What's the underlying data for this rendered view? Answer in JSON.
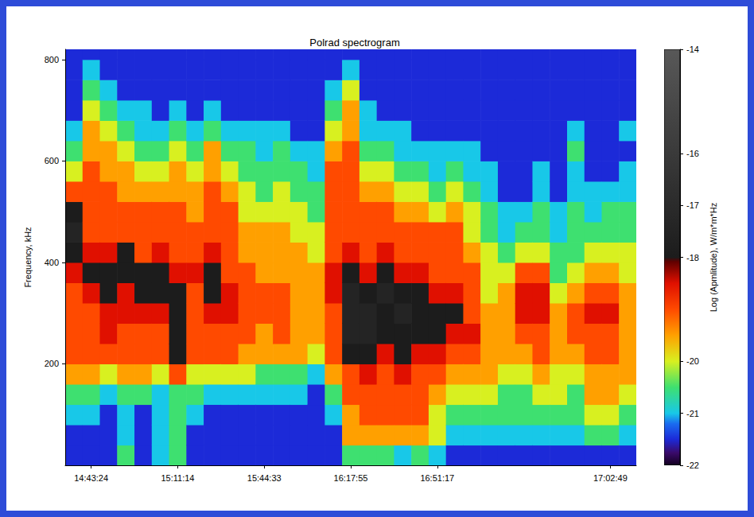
{
  "chart_data": {
    "type": "heatmap",
    "title": "Polrad spectrogram",
    "y_label": "Frequency, kHz",
    "categories": [
      null,
      "14:43:24",
      null,
      null,
      null,
      null,
      "15:11:14",
      null,
      null,
      null,
      null,
      "15:44:33",
      null,
      null,
      null,
      null,
      "16:17:55",
      null,
      null,
      null,
      null,
      "16:51:17",
      null,
      null,
      null,
      null,
      null,
      null,
      null,
      null,
      null,
      "17:02:49",
      null
    ],
    "frequency_bins": [
      0,
      40,
      80,
      120,
      160,
      200,
      240,
      280,
      320,
      360,
      400,
      440,
      480,
      520,
      560,
      600,
      640,
      680,
      720,
      760,
      800,
      820
    ],
    "ylim": [
      0,
      820
    ],
    "yticks": [
      200,
      400,
      600,
      800
    ],
    "amplitude": [
      [
        -21.5,
        -21.5,
        -21,
        -20.5,
        -19.5,
        -19,
        -19,
        -19,
        -19,
        -18.5,
        -18,
        -17.5,
        -18,
        -19,
        -20,
        -20.5,
        -21,
        -21.5,
        -21.5,
        -21.5,
        -21.5
      ],
      [
        -21.5,
        -21.5,
        -21,
        -20.5,
        -19.5,
        -19,
        -19,
        -19,
        -18.5,
        -18,
        -18.5,
        -19,
        -19,
        -19,
        -19,
        -19.5,
        -19.5,
        -20,
        -20.5,
        -21,
        -21.5
      ],
      [
        -21.5,
        -21.5,
        -21.5,
        -21,
        -20,
        -19,
        -18.5,
        -18.5,
        -18,
        -18,
        -18.5,
        -19,
        -19,
        -19,
        -19.5,
        -19.5,
        -20,
        -20.5,
        -21,
        -21.5,
        -21.5
      ],
      [
        -20.5,
        -21,
        -21,
        -20.5,
        -19.5,
        -19,
        -19,
        -18.5,
        -18.5,
        -18,
        -18,
        -19,
        -19,
        -19.5,
        -19.5,
        -20,
        -20.5,
        -21,
        -21.5,
        -21.5,
        -21.5
      ],
      [
        -21.5,
        -21.5,
        -21.5,
        -20.5,
        -19.5,
        -19,
        -19,
        -18.5,
        -18,
        -18,
        -19,
        -19,
        -19,
        -19.5,
        -20,
        -20.5,
        -21,
        -21,
        -21.5,
        -21.5,
        -21.5
      ],
      [
        -21,
        -21,
        -21,
        -21,
        -20,
        -19,
        -19,
        -18.5,
        -18,
        -18,
        -18.5,
        -19,
        -19,
        -19.5,
        -20,
        -20.5,
        -21,
        -21.5,
        -21.5,
        -21.5,
        -21.5
      ],
      [
        -20.5,
        -20.5,
        -20.5,
        -20.5,
        -19,
        -18,
        -18,
        -18,
        -18,
        -18.5,
        -19,
        -19,
        -19,
        -19.5,
        -19.5,
        -20,
        -20.5,
        -21,
        -21.5,
        -21.5,
        -21.5
      ],
      [
        -21.5,
        -21.5,
        -21,
        -20.5,
        -20,
        -19,
        -19,
        -19,
        -19,
        -18.5,
        -19,
        -19,
        -19.5,
        -19.5,
        -20,
        -20.5,
        -21,
        -21.5,
        -21.5,
        -21.5,
        -21.5
      ],
      [
        -21.5,
        -21.5,
        -21.5,
        -21,
        -20,
        -19,
        -19,
        -18.5,
        -18,
        -18,
        -18.5,
        -19,
        -19,
        -19,
        -19.5,
        -19.5,
        -20.5,
        -21,
        -21.5,
        -21.5,
        -21.5
      ],
      [
        -21.5,
        -21.5,
        -21.5,
        -21,
        -20,
        -19,
        -19,
        -18.5,
        -18.5,
        -19,
        -19,
        -19,
        -19,
        -19.5,
        -20,
        -20.5,
        -21,
        -21.5,
        -21.5,
        -21.5,
        -21.5
      ],
      [
        -21.5,
        -21.5,
        -21.5,
        -21,
        -20,
        -19.5,
        -19,
        -19,
        -19,
        -19,
        -19.5,
        -19.5,
        -20,
        -20,
        -20.5,
        -20.5,
        -21,
        -21.5,
        -21.5,
        -21.5,
        -21.5
      ],
      [
        -21.5,
        -21.5,
        -21.5,
        -21,
        -20.5,
        -19.5,
        -19.5,
        -19,
        -19,
        -19.5,
        -19.5,
        -19.5,
        -20,
        -20.5,
        -20.5,
        -21,
        -21,
        -21.5,
        -21.5,
        -21.5,
        -21.5
      ],
      [
        -21.5,
        -21.5,
        -21.5,
        -21,
        -20.5,
        -19.5,
        -19,
        -19,
        -19,
        -19.5,
        -19.5,
        -19.5,
        -20,
        -20,
        -20.5,
        -20.5,
        -21,
        -21.5,
        -21.5,
        -21.5,
        -21.5
      ],
      [
        -21.5,
        -21.5,
        -21.5,
        -21,
        -20.5,
        -19.5,
        -19.5,
        -19.5,
        -19.5,
        -19.5,
        -19.5,
        -20,
        -20,
        -20.5,
        -20.5,
        -21,
        -21.5,
        -21.5,
        -21.5,
        -21.5,
        -21.5
      ],
      [
        -21.5,
        -21.5,
        -21.5,
        -21.5,
        -21,
        -20,
        -19.5,
        -19.5,
        -19.5,
        -19.5,
        -20,
        -20,
        -20.5,
        -20.5,
        -21,
        -21,
        -21.5,
        -21.5,
        -21.5,
        -21.5,
        -21.5
      ],
      [
        -21.5,
        -21.5,
        -21,
        -20.5,
        -19.5,
        -19,
        -19,
        -19,
        -18.5,
        -18.5,
        -19,
        -19,
        -19,
        -19,
        -19,
        -19.5,
        -20,
        -20.5,
        -21,
        -21.5,
        -21.5
      ],
      [
        -20.5,
        -19.5,
        -19.5,
        -19,
        -19,
        -18,
        -17.5,
        -17.5,
        -17.5,
        -18,
        -18.5,
        -19,
        -19,
        -19,
        -19,
        -19,
        -19.5,
        -19.5,
        -20,
        -21,
        -21.5
      ],
      [
        -20.5,
        -19.5,
        -19,
        -19,
        -18.5,
        -18,
        -17.5,
        -17.5,
        -18,
        -18.5,
        -19,
        -19,
        -19,
        -19.5,
        -20,
        -20.5,
        -21,
        -21,
        -21.5,
        -21.5,
        -21.5
      ],
      [
        -20.5,
        -19.5,
        -19,
        -19,
        -19,
        -18.5,
        -18,
        -18,
        -17.5,
        -18,
        -18.5,
        -19,
        -19,
        -19.5,
        -20,
        -20.5,
        -21,
        -21.5,
        -21.5,
        -21.5,
        -21.5
      ],
      [
        -21,
        -19.5,
        -19,
        -19,
        -18.5,
        -18,
        -18,
        -17.5,
        -18,
        -18.5,
        -19,
        -19,
        -19.5,
        -20,
        -20.5,
        -21,
        -21,
        -21.5,
        -21.5,
        -21.5,
        -21.5
      ],
      [
        -20.5,
        -19.5,
        -19,
        -19,
        -19,
        -18.5,
        -18,
        -18,
        -18,
        -18.5,
        -19,
        -19,
        -19.5,
        -20,
        -20.5,
        -21,
        -21.5,
        -21.5,
        -21.5,
        -21.5,
        -21.5
      ],
      [
        -21,
        -20,
        -20,
        -19.5,
        -19,
        -18.5,
        -18,
        -18,
        -18.5,
        -19,
        -19,
        -19,
        -20,
        -20.5,
        -21,
        -21,
        -21.5,
        -21.5,
        -21.5,
        -21.5,
        -21.5
      ],
      [
        -21.5,
        -21,
        -20.5,
        -20,
        -19.5,
        -19,
        -18.5,
        -18,
        -18.5,
        -19,
        -19,
        -19,
        -19.5,
        -20,
        -20.5,
        -21,
        -21.5,
        -21.5,
        -21.5,
        -21.5,
        -21.5
      ],
      [
        -21.5,
        -21,
        -20.5,
        -20,
        -19.5,
        -19,
        -18.5,
        -19,
        -19,
        -19,
        -19.5,
        -20,
        -20,
        -20.5,
        -21,
        -21,
        -21.5,
        -21.5,
        -21.5,
        -21.5,
        -21.5
      ],
      [
        -21.5,
        -21,
        -20.5,
        -20,
        -19.5,
        -19.5,
        -19.5,
        -19.5,
        -20,
        -20,
        -20,
        -20.5,
        -20.5,
        -21,
        -21,
        -21.5,
        -21.5,
        -21.5,
        -21.5,
        -21.5,
        -21.5
      ],
      [
        -21.5,
        -21,
        -20.5,
        -20.5,
        -20,
        -19.5,
        -19.5,
        -19.5,
        -19.5,
        -20,
        -20.5,
        -21,
        -21,
        -21.5,
        -21.5,
        -21.5,
        -21.5,
        -21.5,
        -21.5,
        -21.5,
        -21.5
      ],
      [
        -21.5,
        -21,
        -20.5,
        -20.5,
        -20,
        -19.5,
        -19,
        -18.5,
        -18.5,
        -19,
        -20,
        -20.5,
        -21,
        -21.5,
        -21.5,
        -21.5,
        -21.5,
        -21.5,
        -21.5,
        -21.5,
        -21.5
      ],
      [
        -21.5,
        -21,
        -20.5,
        -20,
        -19.5,
        -19,
        -19,
        -18.5,
        -18.5,
        -19,
        -20,
        -20.5,
        -20.5,
        -21,
        -21,
        -21.5,
        -21.5,
        -21.5,
        -21.5,
        -21.5,
        -21.5
      ],
      [
        -21.5,
        -21,
        -20.5,
        -20,
        -20,
        -19.5,
        -19.5,
        -19.5,
        -20,
        -20.5,
        -20.5,
        -21,
        -21,
        -21.5,
        -21.5,
        -21.5,
        -21.5,
        -21.5,
        -21.5,
        -21.5,
        -21.5
      ],
      [
        -21.5,
        -21,
        -20.5,
        -20.5,
        -20,
        -19.5,
        -19,
        -19,
        -19.5,
        -20,
        -20.5,
        -20.5,
        -20.5,
        -21,
        -21,
        -20.5,
        -21,
        -21.5,
        -21.5,
        -21.5,
        -21.5
      ],
      [
        -21.5,
        -20.5,
        -20,
        -19.5,
        -19.5,
        -19,
        -19,
        -18.5,
        -19,
        -19.5,
        -20,
        -20.5,
        -21,
        -21,
        -21.5,
        -21.5,
        -21.5,
        -21.5,
        -21.5,
        -21.5,
        -21.5
      ],
      [
        -21.5,
        -20.5,
        -20,
        -19.5,
        -19.5,
        -19,
        -19,
        -18.5,
        -19,
        -19.5,
        -20,
        -20.5,
        -20.5,
        -21,
        -21.5,
        -21.5,
        -21.5,
        -21.5,
        -21.5,
        -21.5,
        -21.5
      ],
      [
        -21.5,
        -21,
        -20.5,
        -20,
        -19.5,
        -19.5,
        -19.5,
        -19.5,
        -19.5,
        -20,
        -20,
        -20.5,
        -20.5,
        -21,
        -21,
        -21.5,
        -21,
        -21.5,
        -21.5,
        -21.5,
        -21.5
      ]
    ],
    "colorbar": {
      "label": "Log (Apmlitude), W/m*m*Hz",
      "range": [
        -22,
        -14
      ],
      "ticks": [
        -14,
        -16,
        -17,
        -18,
        -20,
        -21,
        -22
      ]
    }
  }
}
